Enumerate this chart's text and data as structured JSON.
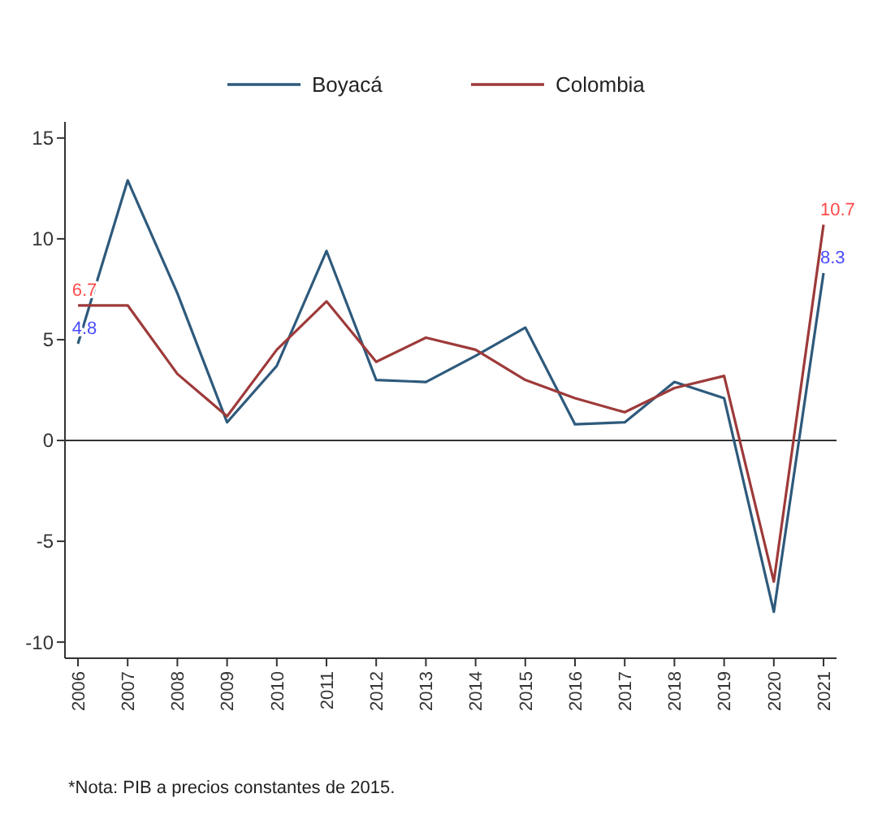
{
  "chart_data": {
    "type": "line",
    "categories": [
      "2006",
      "2007",
      "2008",
      "2009",
      "2010",
      "2011",
      "2012",
      "2013",
      "2014",
      "2015",
      "2016",
      "2017",
      "2018",
      "2019",
      "2020",
      "2021"
    ],
    "series": [
      {
        "name": "Boyacá",
        "color": "#2e5a7c",
        "values": [
          4.8,
          12.9,
          7.3,
          0.9,
          3.7,
          9.4,
          3.0,
          2.9,
          4.2,
          5.6,
          0.8,
          0.9,
          2.9,
          2.1,
          -8.5,
          8.3
        ],
        "value_labels": [
          "4.8",
          null,
          null,
          null,
          null,
          null,
          null,
          null,
          null,
          null,
          null,
          null,
          null,
          null,
          null,
          "8.3"
        ]
      },
      {
        "name": "Colombia",
        "color": "#9e3a3a",
        "values": [
          6.7,
          6.7,
          3.3,
          1.2,
          4.5,
          6.9,
          3.9,
          5.1,
          4.5,
          3.0,
          2.1,
          1.4,
          2.6,
          3.2,
          -7.0,
          10.7
        ],
        "value_labels": [
          "6.7",
          null,
          null,
          null,
          null,
          null,
          null,
          null,
          null,
          null,
          null,
          null,
          null,
          null,
          null,
          "10.7"
        ]
      }
    ],
    "ylim": [
      -10.8,
      15.8
    ],
    "yticks": [
      -10,
      -5,
      0,
      5,
      10,
      15
    ],
    "ref_lines": [
      {
        "axis": "y",
        "value": 0,
        "color": "#333333"
      }
    ],
    "grid": false,
    "legend": "top",
    "annotations": [
      "*Nota: PIB a precios constantes de 2015."
    ]
  }
}
